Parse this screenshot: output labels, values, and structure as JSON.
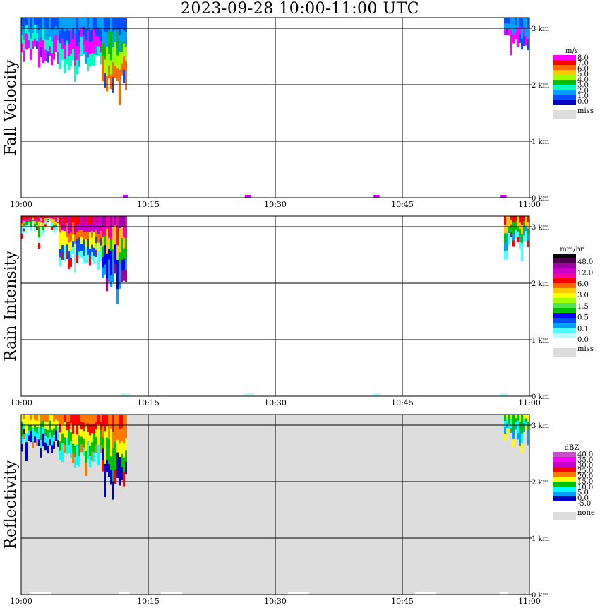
{
  "title": "2023-09-28  10:00-11:00 UTC",
  "chart_data": [
    {
      "type": "heatmap",
      "title": "Fall Velocity",
      "x_ticks": [
        "10:00",
        "10:15",
        "10:30",
        "10:45",
        "11:00"
      ],
      "y_ticks": [
        "0 km",
        "1 km",
        "2 km",
        "3 km"
      ],
      "y_values_km": [
        0,
        1,
        2,
        3
      ],
      "background": "#ffffff",
      "colorbar": {
        "unit": "m/s",
        "labels": [
          "8.0",
          "7.0",
          "6.0",
          "5.0",
          "4.0",
          "3.0",
          "2.0",
          "1.0",
          "0.0"
        ],
        "colors": [
          "#ff00ff",
          "#ff0000",
          "#ff6a00",
          "#ffc800",
          "#a0ff00",
          "#00c000",
          "#00ffc0",
          "#00a0ff",
          "#0050ff",
          "#0000c8"
        ],
        "missing_label": "miss",
        "missing_color": "#dddddd"
      },
      "echoes": [
        {
          "t0": 0.0,
          "t1": 4.5,
          "h_top": 3.2,
          "h_bottom": 2.35,
          "colors": [
            "#0050ff",
            "#00a0ff",
            "#00ffc0",
            "#ff00ff"
          ]
        },
        {
          "t0": 4.5,
          "t1": 9.5,
          "h_top": 3.2,
          "h_bottom": 2.2,
          "colors": [
            "#00a0ff",
            "#0050ff",
            "#ff00ff",
            "#00ffc0"
          ]
        },
        {
          "t0": 9.5,
          "t1": 12.5,
          "h_top": 3.2,
          "h_bottom": 1.85,
          "colors": [
            "#0050ff",
            "#00a0ff",
            "#00c000",
            "#a0ff00",
            "#ff6a00"
          ]
        },
        {
          "t0": 57.0,
          "t1": 60.0,
          "h_top": 3.2,
          "h_bottom": 2.6,
          "colors": [
            "#0050ff",
            "#00a0ff",
            "#ff00ff"
          ]
        }
      ],
      "surface_marks": [
        {
          "t0": 12.0,
          "t1": 12.6,
          "color": "#c800ff"
        },
        {
          "t0": 26.4,
          "t1": 27.1,
          "color": "#c800ff"
        },
        {
          "t0": 41.6,
          "t1": 42.3,
          "color": "#c800ff"
        },
        {
          "t0": 56.6,
          "t1": 57.3,
          "color": "#c800ff"
        }
      ]
    },
    {
      "type": "heatmap",
      "title": "Rain Intensity",
      "x_ticks": [
        "10:00",
        "10:15",
        "10:30",
        "10:45",
        "11:00"
      ],
      "y_ticks": [
        "0 km",
        "1 km",
        "2 km",
        "3 km"
      ],
      "y_values_km": [
        0,
        1,
        2,
        3
      ],
      "background": "#ffffff",
      "colorbar": {
        "unit": "mm/hr",
        "labels": [
          "48.0",
          "12.0",
          "6.0",
          "3.0",
          "1.5",
          "0.5",
          "0.1",
          "0.0"
        ],
        "colors": [
          "#000000",
          "#500050",
          "#a000a0",
          "#c800c8",
          "#ff00a0",
          "#ff0000",
          "#ff6a00",
          "#ffc800",
          "#ffff00",
          "#a0ff00",
          "#50e650",
          "#00c000",
          "#0000ff",
          "#0050ff",
          "#00a0ff",
          "#50ffff",
          "#b4ffff",
          "#ffffff"
        ],
        "missing_label": "miss",
        "missing_color": "#dddddd"
      },
      "echoes": [
        {
          "t0": 0.0,
          "t1": 4.5,
          "h_top": 3.2,
          "h_bottom": 2.75,
          "colors": [
            "#ff0000",
            "#ff00a0",
            "#ffc800",
            "#00c000",
            "#50ffff",
            "#b4ffff"
          ]
        },
        {
          "t0": 4.5,
          "t1": 9.5,
          "h_top": 3.2,
          "h_bottom": 2.2,
          "colors": [
            "#ff0000",
            "#c800c8",
            "#ff6a00",
            "#ffff00",
            "#0050ff",
            "#50ffff"
          ]
        },
        {
          "t0": 9.5,
          "t1": 12.5,
          "h_top": 3.2,
          "h_bottom": 1.85,
          "colors": [
            "#a000a0",
            "#ff00a0",
            "#ffc800",
            "#00c000",
            "#0000ff",
            "#00a0ff"
          ]
        },
        {
          "t0": 57.0,
          "t1": 60.0,
          "h_top": 3.2,
          "h_bottom": 2.6,
          "colors": [
            "#ff0000",
            "#ffc800",
            "#00c000",
            "#00a0ff",
            "#50ffff"
          ]
        }
      ],
      "surface_marks": [
        {
          "t0": 11.8,
          "t1": 12.8,
          "color": "#b4ffff"
        },
        {
          "t0": 26.3,
          "t1": 27.5,
          "color": "#b4ffff"
        },
        {
          "t0": 41.5,
          "t1": 42.5,
          "color": "#b4ffff"
        },
        {
          "t0": 56.5,
          "t1": 57.5,
          "color": "#b4ffff"
        }
      ]
    },
    {
      "type": "heatmap",
      "title": "Reflectivity",
      "x_ticks": [
        "10:00",
        "10:15",
        "10:30",
        "10:45",
        "11:00"
      ],
      "y_ticks": [
        "0 km",
        "1 km",
        "2 km",
        "3 km"
      ],
      "y_values_km": [
        0,
        1,
        2,
        3
      ],
      "background": "#dddddd",
      "colorbar": {
        "unit": "dBZ",
        "labels": [
          "40.0",
          "35.0",
          "30.0",
          "25.0",
          "20.0",
          "15.0",
          "10.0",
          "5.0",
          "0.0",
          "-5.0"
        ],
        "colors": [
          "#c850c8",
          "#ff00ff",
          "#c800c8",
          "#ff0000",
          "#ff7800",
          "#ffff00",
          "#00c000",
          "#00ffff",
          "#00a0ff",
          "#0000c8",
          "#ffffff"
        ],
        "missing_label": "none",
        "missing_color": "#dddddd"
      },
      "echoes": [
        {
          "t0": 0.0,
          "t1": 4.5,
          "h_top": 3.2,
          "h_bottom": 2.5,
          "colors": [
            "#ff7800",
            "#ffff00",
            "#00c000",
            "#00ffff",
            "#0000c8"
          ]
        },
        {
          "t0": 4.5,
          "t1": 9.5,
          "h_top": 3.2,
          "h_bottom": 2.2,
          "colors": [
            "#ff7800",
            "#ff0000",
            "#ffff00",
            "#00c000",
            "#00ffff"
          ]
        },
        {
          "t0": 9.5,
          "t1": 12.5,
          "h_top": 3.2,
          "h_bottom": 1.85,
          "colors": [
            "#ff0000",
            "#ff7800",
            "#ffff00",
            "#00c000",
            "#0000c8"
          ]
        },
        {
          "t0": 57.0,
          "t1": 60.0,
          "h_top": 3.2,
          "h_bottom": 2.6,
          "colors": [
            "#ffff00",
            "#00c000",
            "#00ffff",
            "#00a0ff"
          ]
        }
      ],
      "surface_marks": [
        {
          "t0": 1.0,
          "t1": 3.5,
          "color": "#ffffff"
        },
        {
          "t0": 11.5,
          "t1": 12.8,
          "color": "#ffffff"
        },
        {
          "t0": 16.5,
          "t1": 19.0,
          "color": "#ffffff"
        },
        {
          "t0": 31.5,
          "t1": 34.0,
          "color": "#ffffff"
        },
        {
          "t0": 46.5,
          "t1": 49.0,
          "color": "#ffffff"
        },
        {
          "t0": 56.5,
          "t1": 57.5,
          "color": "#ffffff"
        }
      ]
    }
  ]
}
